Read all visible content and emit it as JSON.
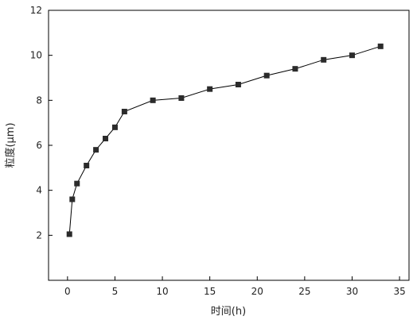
{
  "chart_data": {
    "type": "line",
    "title": "",
    "xlabel": "时间(h)",
    "ylabel": "粒度(μm)",
    "xlim": [
      -2,
      36
    ],
    "ylim": [
      0,
      12
    ],
    "xticks": [
      0,
      5,
      10,
      15,
      20,
      25,
      30,
      35
    ],
    "yticks": [
      2,
      4,
      6,
      8,
      10,
      12
    ],
    "grid": false,
    "marker": "square",
    "series": [
      {
        "x": [
          0.2,
          0.5,
          1,
          2,
          3,
          4,
          5,
          6,
          9,
          12,
          15,
          18,
          21,
          24,
          27,
          30,
          33
        ],
        "y": [
          2.05,
          3.6,
          4.3,
          5.1,
          5.8,
          6.3,
          6.8,
          7.5,
          8.0,
          8.1,
          8.5,
          8.7,
          9.1,
          9.4,
          9.8,
          10.0,
          10.4
        ]
      }
    ],
    "colors": {
      "line": "#000000",
      "marker": "#2b2b2b",
      "axis": "#000000"
    }
  }
}
